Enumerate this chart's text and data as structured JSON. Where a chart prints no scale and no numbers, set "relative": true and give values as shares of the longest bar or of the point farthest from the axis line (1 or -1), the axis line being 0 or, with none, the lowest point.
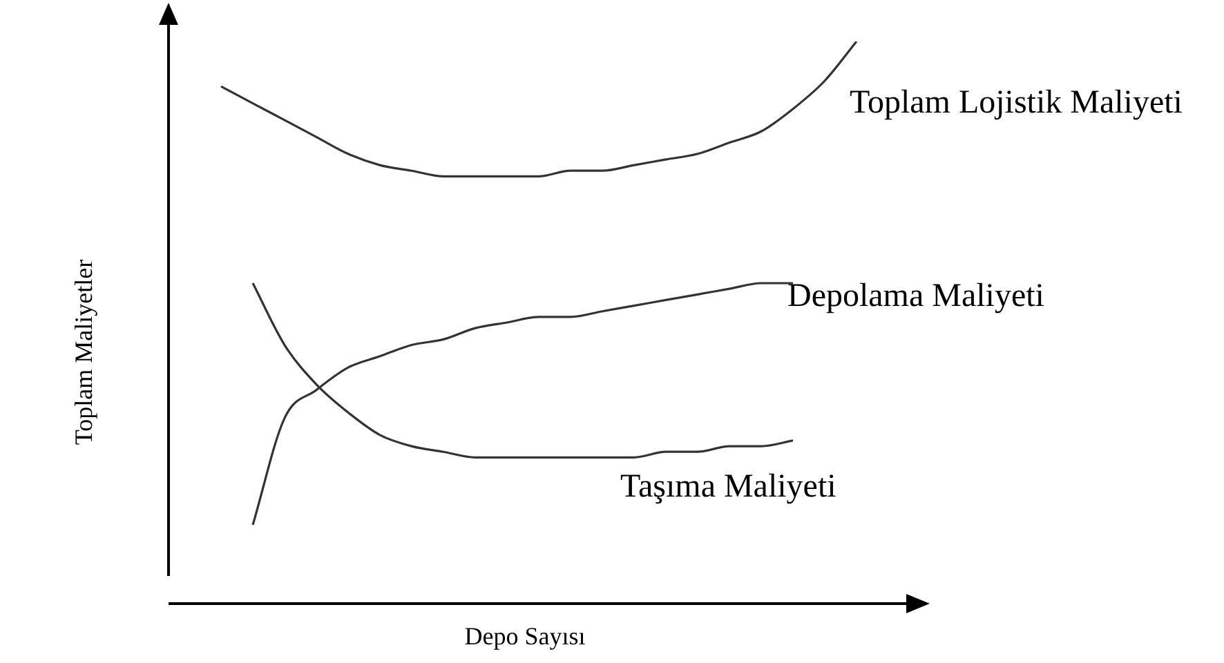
{
  "chart_data": {
    "type": "line",
    "relative": true,
    "xlabel": "Depo Sayısı",
    "ylabel": "Toplam Maliyetler",
    "legend": false,
    "marker": "none",
    "line_style": "solid",
    "categories": [
      null,
      null,
      null,
      null,
      null,
      null,
      null,
      null,
      null,
      null,
      null,
      null,
      null,
      null,
      null,
      null,
      null,
      null,
      null,
      null,
      null
    ],
    "series": [
      {
        "name": "Toplam Lojistik Maliyeti",
        "color": "#333333",
        "values": [
          0.92,
          0.89,
          0.86,
          0.83,
          0.8,
          0.78,
          0.77,
          0.76,
          0.76,
          0.76,
          0.76,
          0.77,
          0.77,
          0.78,
          0.79,
          0.8,
          0.82,
          0.84,
          0.88,
          0.93,
          1
        ]
      },
      {
        "name": "Depolama Maliyeti",
        "color": "#333333",
        "values": [
          null,
          0.14,
          0.33,
          0.38,
          0.42,
          0.44,
          0.46,
          0.47,
          0.49,
          0.5,
          0.51,
          0.51,
          0.52,
          0.53,
          0.54,
          0.55,
          0.56,
          0.57,
          0.57,
          null,
          null
        ]
      },
      {
        "name": "Taşıma Maliyeti",
        "color": "#333333",
        "values": [
          null,
          0.57,
          0.46,
          0.39,
          0.34,
          0.3,
          0.28,
          0.27,
          0.26,
          0.26,
          0.26,
          0.26,
          0.26,
          0.26,
          0.27,
          0.27,
          0.28,
          0.28,
          0.29,
          null,
          null
        ]
      }
    ]
  }
}
